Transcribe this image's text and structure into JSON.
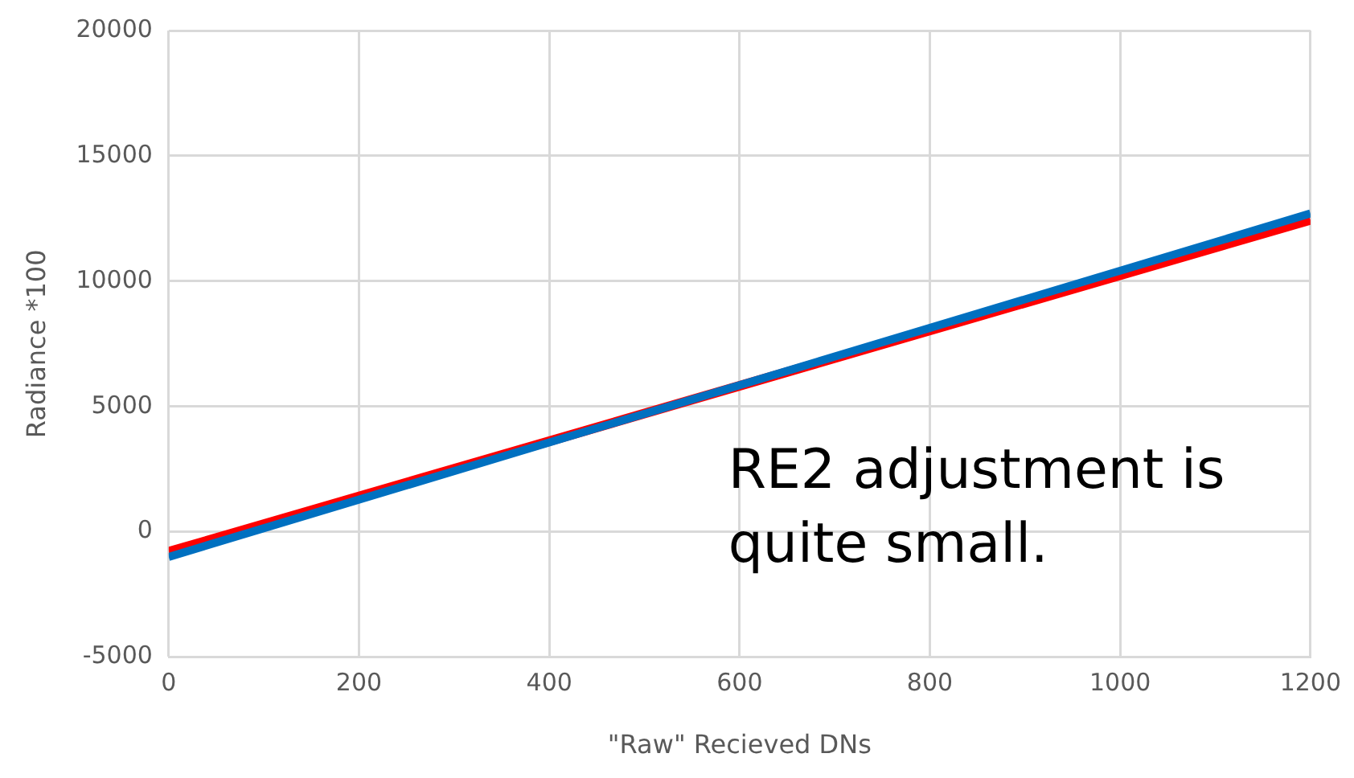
{
  "chart_data": {
    "type": "line",
    "xlabel": "\"Raw\" Recieved DNs",
    "ylabel": "Radiance *100",
    "x": [
      0,
      1200
    ],
    "series": [
      {
        "color": "#0070c0",
        "values": [
          -1000,
          12700
        ]
      },
      {
        "color": "#ff0000",
        "values": [
          -800,
          12450
        ]
      }
    ],
    "xlim": [
      0,
      1200
    ],
    "xticks": [
      0,
      200,
      400,
      600,
      800,
      1000,
      1200
    ],
    "ylim": [
      -5000,
      20000
    ],
    "yticks": [
      -5000,
      0,
      5000,
      10000,
      15000,
      20000
    ],
    "grid": true,
    "legend": false,
    "marker": "none",
    "line_style": "solid",
    "annotations": [
      "RE2 adjustment is quite small."
    ]
  }
}
